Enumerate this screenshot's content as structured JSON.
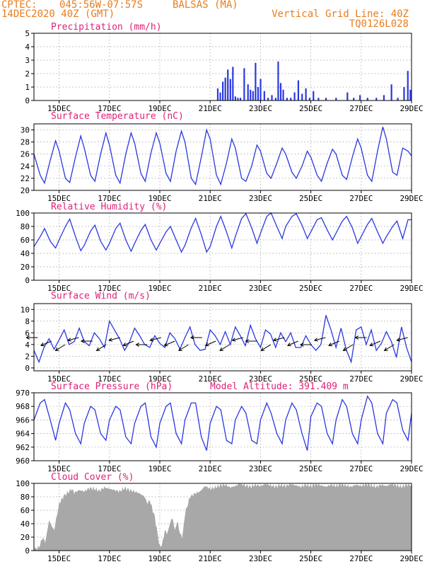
{
  "header": {
    "source": "CPTEC:",
    "coords": "045:56W-07:57S",
    "location": "BALSAS (MA)",
    "run": "14DEC2020 40Z (GMT)",
    "grid_note": "Vertical Grid Line: 40Z",
    "code": "TQ0126L028"
  },
  "colors": {
    "accent": "#e87d1e",
    "title": "#e0207a",
    "line": "#2a38e0",
    "bar": "#2a38e0",
    "cloud": "#a8a8a8"
  },
  "chart_data": [
    {
      "type": "bar",
      "title": "Precipitation (mm/h)",
      "x_range_days": [
        14,
        29
      ],
      "ylim": [
        0,
        5
      ],
      "yticks": [
        "0",
        "1",
        "2",
        "3",
        "4",
        "5"
      ],
      "xticks": [
        "15DEC",
        "17DEC",
        "19DEC",
        "21DEC",
        "23DEC",
        "25DEC",
        "27DEC",
        "29DEC"
      ],
      "series": [
        {
          "name": "precipitation",
          "x": [
            21.3,
            21.4,
            21.5,
            21.6,
            21.7,
            21.8,
            21.9,
            22.0,
            22.1,
            22.2,
            22.35,
            22.5,
            22.6,
            22.7,
            22.8,
            22.9,
            23.0,
            23.15,
            23.3,
            23.45,
            23.6,
            23.7,
            23.8,
            23.9,
            24.05,
            24.2,
            24.35,
            24.5,
            24.65,
            24.8,
            24.95,
            25.1,
            25.3,
            25.6,
            26.0,
            26.45,
            26.7,
            26.95,
            27.25,
            27.6,
            27.9,
            28.2,
            28.45,
            28.7,
            28.85,
            28.95
          ],
          "values": [
            0.9,
            0.6,
            1.4,
            1.7,
            2.3,
            1.6,
            2.5,
            0.3,
            0.2,
            0.2,
            2.4,
            1.2,
            0.8,
            0.7,
            2.8,
            1.0,
            1.6,
            0.7,
            0.2,
            0.4,
            0.2,
            2.9,
            1.3,
            0.8,
            0.2,
            0.2,
            0.6,
            1.5,
            0.5,
            0.9,
            0.2,
            0.7,
            0.2,
            0.2,
            0.2,
            0.6,
            0.2,
            0.4,
            0.2,
            0.2,
            0.4,
            1.2,
            0.2,
            1.0,
            2.2,
            0.8
          ]
        }
      ]
    },
    {
      "type": "line",
      "title": "Surface Temperature (nC)",
      "x_range_days": [
        14,
        29
      ],
      "ylim": [
        20,
        31
      ],
      "yticks": [
        "20",
        "22",
        "24",
        "26",
        "28",
        "30"
      ],
      "xticks": [
        "15DEC",
        "17DEC",
        "19DEC",
        "21DEC",
        "23DEC",
        "25DEC",
        "27DEC",
        "29DEC"
      ],
      "series": [
        {
          "name": "temperature",
          "x": [
            14.0,
            14.25,
            14.42,
            14.65,
            14.86,
            15.0,
            15.25,
            15.42,
            15.65,
            15.86,
            16.0,
            16.25,
            16.42,
            16.65,
            16.86,
            17.0,
            17.25,
            17.42,
            17.65,
            17.86,
            18.0,
            18.25,
            18.42,
            18.65,
            18.86,
            19.0,
            19.25,
            19.42,
            19.65,
            19.86,
            20.0,
            20.25,
            20.42,
            20.65,
            20.86,
            21.0,
            21.25,
            21.42,
            21.65,
            21.86,
            22.0,
            22.25,
            22.42,
            22.65,
            22.86,
            23.0,
            23.25,
            23.42,
            23.65,
            23.86,
            24.0,
            24.25,
            24.42,
            24.65,
            24.86,
            25.0,
            25.25,
            25.42,
            25.65,
            25.86,
            26.0,
            26.25,
            26.42,
            26.65,
            26.86,
            27.0,
            27.25,
            27.42,
            27.65,
            27.86,
            28.0,
            28.25,
            28.42,
            28.65,
            28.86,
            29.0
          ],
          "values": [
            26.0,
            22.5,
            21.2,
            25.0,
            28.2,
            26.5,
            22.0,
            21.3,
            25.5,
            29.0,
            27.0,
            22.5,
            21.5,
            26.0,
            29.5,
            27.5,
            22.5,
            21.2,
            26.0,
            29.5,
            27.8,
            22.8,
            21.5,
            26.2,
            29.5,
            27.8,
            22.8,
            21.5,
            26.5,
            29.8,
            28.0,
            22.0,
            21.0,
            25.5,
            30.0,
            28.5,
            22.5,
            21.0,
            24.5,
            28.5,
            27.0,
            22.0,
            21.5,
            24.0,
            27.5,
            26.5,
            22.8,
            22.0,
            24.5,
            27.0,
            26.0,
            23.0,
            22.0,
            24.0,
            26.5,
            25.5,
            22.5,
            21.5,
            24.5,
            26.8,
            26.0,
            22.5,
            21.8,
            25.5,
            28.5,
            27.0,
            22.5,
            21.5,
            26.5,
            30.5,
            28.5,
            23.0,
            22.5,
            27.0,
            26.5,
            25.7
          ]
        }
      ]
    },
    {
      "type": "line",
      "title": "Relative Humidity (%)",
      "x_range_days": [
        14,
        29
      ],
      "ylim": [
        0,
        100
      ],
      "yticks": [
        "0",
        "20",
        "40",
        "60",
        "80",
        "100"
      ],
      "xticks": [
        "15DEC",
        "17DEC",
        "19DEC",
        "21DEC",
        "23DEC",
        "25DEC",
        "27DEC",
        "29DEC"
      ],
      "series": [
        {
          "name": "humidity",
          "x": [
            14.0,
            14.25,
            14.42,
            14.65,
            14.86,
            15.0,
            15.25,
            15.42,
            15.65,
            15.86,
            16.0,
            16.25,
            16.42,
            16.65,
            16.86,
            17.0,
            17.25,
            17.42,
            17.65,
            17.86,
            18.0,
            18.25,
            18.42,
            18.65,
            18.86,
            19.0,
            19.25,
            19.42,
            19.65,
            19.86,
            20.0,
            20.25,
            20.42,
            20.65,
            20.86,
            21.0,
            21.25,
            21.42,
            21.65,
            21.86,
            22.0,
            22.25,
            22.42,
            22.65,
            22.86,
            23.0,
            23.25,
            23.42,
            23.65,
            23.86,
            24.0,
            24.25,
            24.42,
            24.65,
            24.86,
            25.0,
            25.25,
            25.42,
            25.65,
            25.86,
            26.0,
            26.25,
            26.42,
            26.65,
            26.86,
            27.0,
            27.25,
            27.42,
            27.65,
            27.86,
            28.0,
            28.25,
            28.42,
            28.65,
            28.86,
            29.0
          ],
          "values": [
            50,
            65,
            77,
            58,
            48,
            60,
            80,
            91,
            65,
            44,
            52,
            73,
            82,
            58,
            45,
            55,
            77,
            85,
            60,
            43,
            55,
            74,
            83,
            60,
            45,
            55,
            72,
            80,
            60,
            42,
            52,
            78,
            92,
            68,
            42,
            50,
            80,
            95,
            72,
            48,
            65,
            92,
            99,
            78,
            55,
            70,
            95,
            100,
            80,
            62,
            80,
            95,
            99,
            82,
            62,
            72,
            90,
            93,
            75,
            60,
            70,
            88,
            95,
            78,
            55,
            65,
            83,
            92,
            72,
            55,
            65,
            80,
            88,
            62,
            90,
            90
          ]
        }
      ]
    },
    {
      "type": "line",
      "title": "Surface Wind (m/s)",
      "x_range_days": [
        14,
        29
      ],
      "ylim": [
        -0.5,
        11
      ],
      "yticks": [
        "0",
        "2",
        "4",
        "6",
        "8",
        "10"
      ],
      "xticks": [
        "15DEC",
        "17DEC",
        "19DEC",
        "21DEC",
        "23DEC",
        "25DEC",
        "27DEC",
        "29DEC"
      ],
      "series": [
        {
          "name": "wind_speed",
          "x": [
            14.0,
            14.2,
            14.4,
            14.6,
            14.8,
            15.0,
            15.2,
            15.4,
            15.6,
            15.8,
            16.0,
            16.2,
            16.4,
            16.6,
            16.8,
            17.0,
            17.2,
            17.4,
            17.6,
            17.8,
            18.0,
            18.2,
            18.4,
            18.6,
            18.8,
            19.0,
            19.2,
            19.4,
            19.6,
            19.8,
            20.0,
            20.2,
            20.4,
            20.6,
            20.8,
            21.0,
            21.2,
            21.4,
            21.6,
            21.8,
            22.0,
            22.2,
            22.4,
            22.6,
            22.8,
            23.0,
            23.2,
            23.4,
            23.6,
            23.8,
            24.0,
            24.2,
            24.4,
            24.6,
            24.8,
            25.0,
            25.2,
            25.4,
            25.6,
            25.8,
            26.0,
            26.2,
            26.4,
            26.6,
            26.8,
            27.0,
            27.2,
            27.4,
            27.6,
            27.8,
            28.0,
            28.2,
            28.4,
            28.6,
            28.8,
            29.0
          ],
          "values": [
            3.0,
            1.0,
            3.5,
            5.0,
            3.2,
            4.8,
            6.5,
            4.0,
            4.5,
            6.8,
            4.5,
            3.8,
            6.0,
            5.0,
            3.5,
            8.0,
            6.5,
            5.0,
            3.0,
            4.5,
            6.8,
            5.5,
            4.0,
            3.5,
            5.5,
            4.2,
            3.5,
            6.0,
            5.0,
            3.2,
            5.2,
            7.0,
            4.0,
            3.0,
            3.2,
            6.5,
            5.5,
            4.0,
            6.2,
            4.0,
            7.0,
            5.5,
            3.8,
            7.3,
            5.0,
            3.5,
            6.5,
            5.8,
            3.5,
            6.0,
            4.5,
            6.0,
            3.5,
            3.5,
            5.5,
            4.0,
            3.0,
            4.0,
            9.0,
            6.5,
            3.5,
            6.8,
            3.2,
            1.0,
            6.5,
            7.0,
            4.0,
            6.5,
            3.0,
            4.2,
            6.2,
            4.5,
            1.8,
            7.0,
            3.5,
            1.0
          ]
        }
      ],
      "arrows_count": 28
    },
    {
      "type": "line",
      "title": "Surface Pressure (hPa)",
      "annotation": "Model Altitude: 391.409 m",
      "x_range_days": [
        14,
        29
      ],
      "ylim": [
        960,
        970
      ],
      "yticks": [
        "960",
        "962",
        "964",
        "966",
        "968",
        "970"
      ],
      "xticks": [
        "15DEC",
        "17DEC",
        "19DEC",
        "21DEC",
        "23DEC",
        "25DEC",
        "27DEC",
        "29DEC"
      ],
      "series": [
        {
          "name": "pressure",
          "x": [
            14.0,
            14.25,
            14.42,
            14.65,
            14.86,
            15.0,
            15.25,
            15.42,
            15.65,
            15.86,
            16.0,
            16.25,
            16.42,
            16.65,
            16.86,
            17.0,
            17.25,
            17.42,
            17.65,
            17.86,
            18.0,
            18.25,
            18.42,
            18.65,
            18.86,
            19.0,
            19.25,
            19.42,
            19.65,
            19.86,
            20.0,
            20.25,
            20.42,
            20.65,
            20.86,
            21.0,
            21.25,
            21.42,
            21.65,
            21.86,
            22.0,
            22.25,
            22.42,
            22.65,
            22.86,
            23.0,
            23.25,
            23.42,
            23.65,
            23.86,
            24.0,
            24.25,
            24.42,
            24.65,
            24.86,
            25.0,
            25.25,
            25.42,
            25.65,
            25.86,
            26.0,
            26.25,
            26.42,
            26.65,
            26.86,
            27.0,
            27.25,
            27.42,
            27.65,
            27.86,
            28.0,
            28.25,
            28.42,
            28.65,
            28.86,
            29.0
          ],
          "values": [
            966.0,
            968.5,
            969.0,
            966.0,
            963.0,
            965.5,
            968.5,
            967.5,
            964.0,
            962.5,
            965.5,
            968.0,
            967.5,
            964.0,
            963.0,
            966.0,
            968.0,
            967.5,
            963.5,
            962.5,
            965.5,
            968.0,
            968.5,
            963.5,
            962.0,
            965.5,
            968.0,
            968.5,
            964.0,
            962.5,
            966.0,
            968.5,
            968.5,
            963.5,
            961.5,
            965.5,
            968.0,
            967.5,
            963.0,
            962.5,
            966.0,
            968.0,
            967.0,
            963.0,
            962.5,
            966.0,
            968.5,
            967.0,
            964.0,
            962.5,
            966.0,
            968.5,
            967.5,
            964.0,
            961.5,
            966.5,
            968.5,
            968.0,
            964.0,
            962.5,
            966.0,
            969.0,
            968.0,
            964.0,
            962.5,
            966.0,
            969.5,
            968.5,
            964.0,
            962.5,
            967.0,
            969.0,
            968.5,
            964.5,
            963.0,
            967.0
          ]
        }
      ]
    },
    {
      "type": "area",
      "title": "Cloud Cover (%)",
      "x_range_days": [
        14,
        29
      ],
      "ylim": [
        0,
        100
      ],
      "yticks": [
        "0",
        "20",
        "40",
        "60",
        "80",
        "100"
      ],
      "xticks": [
        "15DEC",
        "17DEC",
        "19DEC",
        "21DEC",
        "23DEC",
        "25DEC",
        "27DEC",
        "29DEC"
      ],
      "series": [
        {
          "name": "cloud_cover",
          "x": [
            14.0,
            14.2,
            14.35,
            14.45,
            14.6,
            14.8,
            15.0,
            15.2,
            15.4,
            15.5,
            15.6,
            15.8,
            16.0,
            16.2,
            16.4,
            16.6,
            16.8,
            17.0,
            17.2,
            17.4,
            17.6,
            17.8,
            18.0,
            18.2,
            18.4,
            18.5,
            18.6,
            18.8,
            19.0,
            19.1,
            19.2,
            19.3,
            19.4,
            19.5,
            19.6,
            19.7,
            19.8,
            19.9,
            20.0,
            20.2,
            20.4,
            20.6,
            20.8,
            21.0,
            21.2,
            21.4,
            21.6,
            21.8,
            22.0,
            22.2,
            22.4,
            22.6,
            22.8,
            23.0,
            23.2,
            23.4,
            23.6,
            23.8,
            24.0,
            24.2,
            24.4,
            24.6,
            24.8,
            25.0,
            25.2,
            25.4,
            25.6,
            25.8,
            26.0,
            26.2,
            26.4,
            26.6,
            26.8,
            27.0,
            27.2,
            27.4,
            27.6,
            27.8,
            28.0,
            28.2,
            28.4,
            28.6,
            28.8,
            29.0
          ],
          "values": [
            2,
            5,
            20,
            12,
            45,
            30,
            70,
            82,
            88,
            92,
            86,
            90,
            88,
            93,
            92,
            89,
            94,
            92,
            90,
            88,
            93,
            90,
            88,
            85,
            80,
            70,
            75,
            50,
            5,
            10,
            30,
            25,
            40,
            50,
            30,
            45,
            25,
            20,
            55,
            80,
            85,
            88,
            96,
            92,
            94,
            97,
            98,
            94,
            96,
            100,
            97,
            95,
            98,
            96,
            99,
            97,
            95,
            98,
            96,
            99,
            97,
            95,
            98,
            96,
            99,
            97,
            95,
            98,
            96,
            99,
            97,
            95,
            98,
            96,
            99,
            97,
            95,
            98,
            96,
            99,
            97,
            95,
            98,
            97
          ]
        }
      ]
    }
  ]
}
